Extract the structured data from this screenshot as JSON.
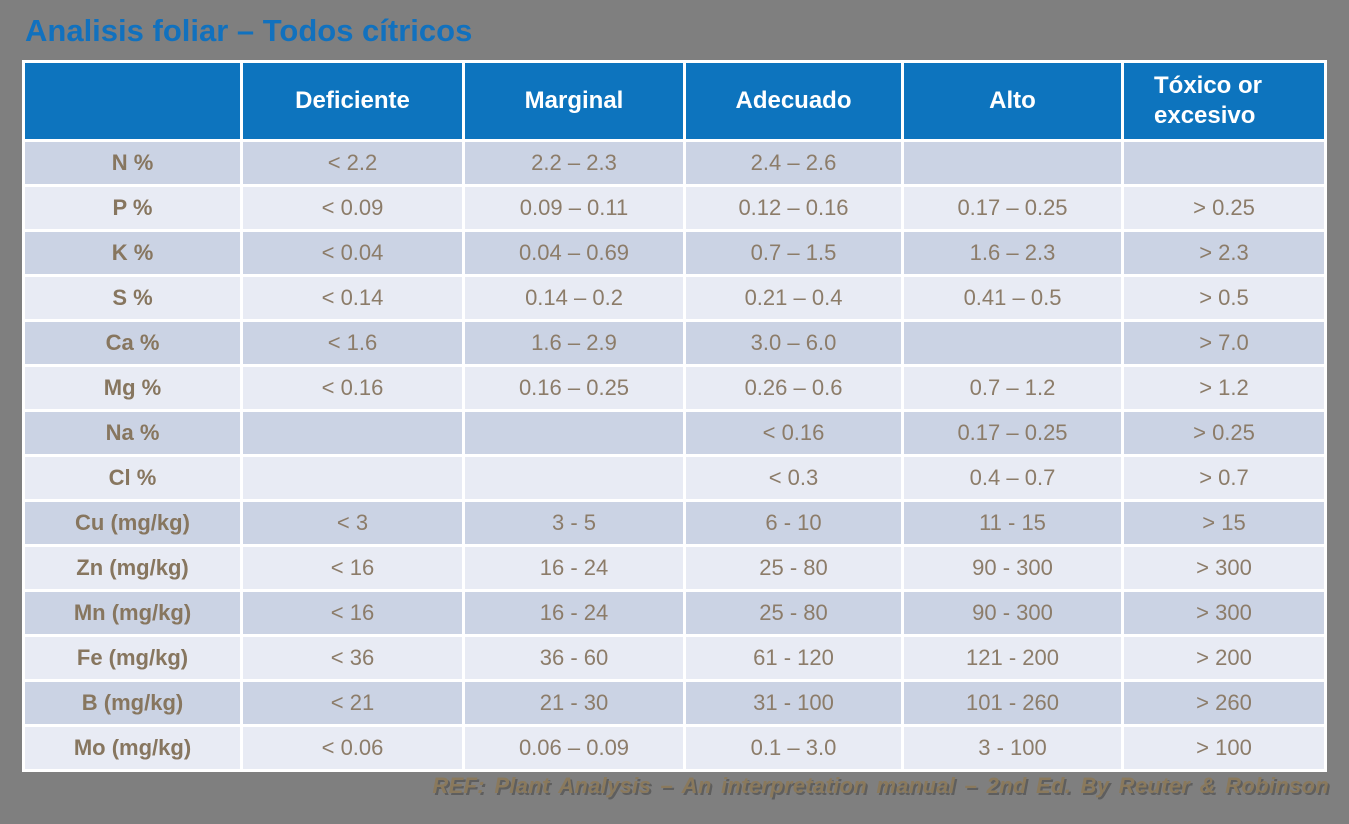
{
  "slide": {
    "title": "Analisis foliar – Todos cítricos",
    "footer": "REF: Plant Analysis – An interpretation manual – 2nd Ed. By Reuter & Robinson"
  },
  "colors": {
    "slide_background": "#7F7F7F",
    "title_blue": "#1171BE",
    "header_blue": "#0D74BE",
    "header_text": "#FFFFFF",
    "row_dark": "#CBD3E4",
    "row_light": "#E8EBF4",
    "cell_text": "#8C7C69",
    "footer_text": "#8A795C",
    "grid_lines": "#FFFFFF"
  },
  "chart_data": {
    "type": "table",
    "title": "Analisis foliar – Todos cítricos",
    "columns": [
      "",
      "Deficiente",
      "Marginal",
      "Adecuado",
      "Alto",
      "Tóxico or excesivo"
    ],
    "rows": [
      {
        "label": "N %",
        "values": [
          "< 2.2",
          "2.2 – 2.3",
          "2.4 – 2.6",
          "",
          ""
        ]
      },
      {
        "label": "P %",
        "values": [
          "< 0.09",
          "0.09 – 0.11",
          "0.12 – 0.16",
          "0.17 – 0.25",
          "> 0.25"
        ]
      },
      {
        "label": "K %",
        "values": [
          "< 0.04",
          "0.04 – 0.69",
          "0.7 – 1.5",
          "1.6 – 2.3",
          "> 2.3"
        ]
      },
      {
        "label": "S %",
        "values": [
          "< 0.14",
          "0.14 – 0.2",
          "0.21 – 0.4",
          "0.41 – 0.5",
          "> 0.5"
        ]
      },
      {
        "label": "Ca %",
        "values": [
          "< 1.6",
          "1.6 – 2.9",
          "3.0 – 6.0",
          "",
          "> 7.0"
        ]
      },
      {
        "label": "Mg %",
        "values": [
          "< 0.16",
          "0.16 – 0.25",
          "0.26 – 0.6",
          "0.7 – 1.2",
          "> 1.2"
        ]
      },
      {
        "label": "Na %",
        "values": [
          "",
          "",
          "< 0.16",
          "0.17 – 0.25",
          "> 0.25"
        ]
      },
      {
        "label": "Cl %",
        "values": [
          "",
          "",
          "< 0.3",
          "0.4 – 0.7",
          "> 0.7"
        ]
      },
      {
        "label": "Cu (mg/kg)",
        "values": [
          "< 3",
          "3 - 5",
          "6 - 10",
          "11 - 15",
          "> 15"
        ]
      },
      {
        "label": "Zn (mg/kg)",
        "values": [
          "< 16",
          "16 - 24",
          "25 - 80",
          "90 - 300",
          "> 300"
        ]
      },
      {
        "label": "Mn (mg/kg)",
        "values": [
          "< 16",
          "16 - 24",
          "25 - 80",
          "90 - 300",
          "> 300"
        ]
      },
      {
        "label": "Fe (mg/kg)",
        "values": [
          "< 36",
          "36 - 60",
          "61 - 120",
          "121 - 200",
          "> 200"
        ]
      },
      {
        "label": "B (mg/kg)",
        "values": [
          "< 21",
          "21 - 30",
          "31 - 100",
          "101 - 260",
          "> 260"
        ]
      },
      {
        "label": "Mo (mg/kg)",
        "values": [
          "< 0.06",
          "0.06 – 0.09",
          "0.1 – 3.0",
          "3 - 100",
          "> 100"
        ]
      }
    ]
  }
}
